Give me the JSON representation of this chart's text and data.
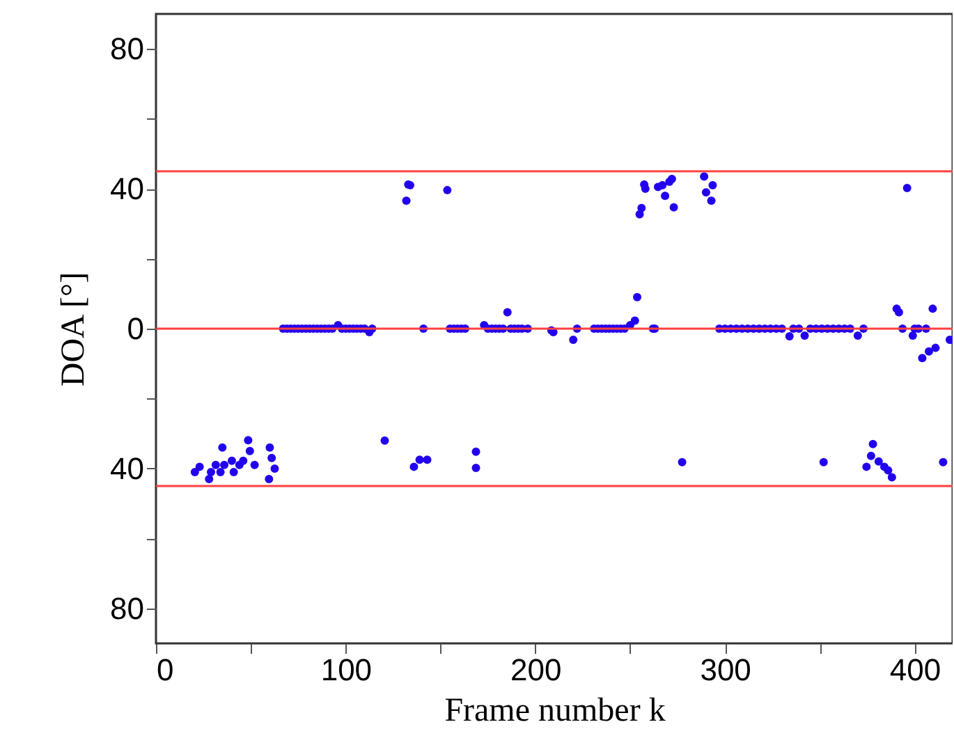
{
  "chart_data": {
    "type": "scatter",
    "xlabel": "Frame number  k",
    "ylabel": "DOA [°]",
    "xlim": [
      0,
      420
    ],
    "ylim": [
      -90,
      90
    ],
    "xticks": [
      0,
      {
        "value": 50,
        "label": null
      },
      100,
      {
        "value": 150,
        "label": null
      },
      200,
      {
        "value": 250,
        "label": null
      },
      300,
      {
        "value": 350,
        "label": null
      },
      400
    ],
    "yticks": [
      {
        "value": -80,
        "label": "80"
      },
      {
        "value": -60,
        "label": null
      },
      {
        "value": -40,
        "label": "40"
      },
      {
        "value": -20,
        "label": null
      },
      0,
      {
        "value": 20,
        "label": null
      },
      40,
      {
        "value": 60,
        "label": null
      },
      80
    ],
    "grid": false,
    "marker": "circle",
    "ref_lines": [
      {
        "axis": "y",
        "value": 45,
        "color": "#ff4040"
      },
      {
        "axis": "y",
        "value": 0,
        "color": "#ff4040"
      },
      {
        "axis": "y",
        "value": -45,
        "color": "#ff4040"
      }
    ],
    "series": [
      {
        "color": "#2200ee",
        "x": [
          20.5,
          23,
          28,
          29,
          31.5,
          34,
          35,
          36,
          40,
          41,
          44,
          46,
          48.6,
          49.5,
          52,
          59.6,
          60,
          61,
          62.6,
          67,
          69,
          71,
          73,
          75,
          77,
          79,
          81,
          83,
          85,
          87,
          89,
          91,
          93,
          96,
          98,
          100,
          102,
          104,
          106,
          108,
          110,
          112.5,
          114,
          120.6,
          132,
          133,
          134,
          136,
          139,
          143,
          141,
          153.6,
          155,
          157,
          159,
          161,
          163,
          168.7,
          168.7,
          173,
          175,
          177,
          179,
          181,
          183,
          185.3,
          187,
          189,
          191,
          193,
          196,
          208.5,
          209.5,
          220,
          222,
          231,
          233,
          235,
          237,
          239,
          241,
          243,
          245,
          247,
          250,
          252.5,
          253.7,
          255,
          256,
          257.4,
          258,
          262,
          263,
          264.7,
          267,
          268.4,
          270.7,
          272,
          273,
          277.4,
          289,
          290,
          292.8,
          293.5,
          297,
          300,
          303,
          306,
          309,
          312,
          315,
          318,
          321,
          324,
          327,
          330,
          334,
          336,
          339,
          342,
          345,
          348,
          351,
          354,
          357,
          360,
          363,
          366,
          370,
          373,
          352,
          374.6,
          377,
          378,
          381,
          384,
          386,
          388,
          390.5,
          391.7,
          393.6,
          396,
          399,
          400,
          402,
          404,
          406,
          407.5,
          409.5,
          411,
          415,
          418.5
        ],
        "values": [
          -41,
          -39.5,
          -43,
          -41,
          -39,
          -41,
          -34,
          -39,
          -37.8,
          -41,
          -39,
          -37.8,
          -31.9,
          -35,
          -39,
          -43,
          -34,
          -37,
          -40,
          0,
          0,
          0,
          0,
          0,
          0,
          0,
          0,
          0,
          0,
          0,
          0,
          0,
          0,
          1,
          0,
          0,
          0,
          0,
          0,
          0,
          0,
          -1,
          0,
          -32,
          36.6,
          41.2,
          41,
          -39.5,
          -37.5,
          -37.5,
          0,
          39.6,
          0,
          0,
          0,
          0,
          0,
          -35.2,
          -39.8,
          1,
          0,
          0,
          0,
          0,
          0,
          4.7,
          0,
          0,
          0,
          0,
          0,
          -0.5,
          -1,
          -3.2,
          0,
          0,
          0,
          0,
          0,
          0,
          0,
          0,
          0,
          0,
          1,
          2.3,
          9,
          32.7,
          34.5,
          41.2,
          40,
          0,
          0,
          40.5,
          41,
          38,
          42,
          42.8,
          34.7,
          -38.2,
          43.5,
          39,
          36.6,
          41,
          0,
          0,
          0,
          0,
          0,
          0,
          0,
          0,
          0,
          0,
          0,
          0,
          -2.2,
          0,
          0,
          -2,
          0,
          0,
          0,
          0,
          0,
          0,
          0,
          0,
          -2,
          0,
          -38.2,
          -39.5,
          -36.4,
          -33,
          -38,
          -39.5,
          -40.5,
          -42.5,
          5.7,
          4.7,
          0,
          40.2,
          -2,
          0,
          0,
          -8.4,
          0,
          -6.5,
          5.7,
          -5.5,
          -38.2,
          -3.2
        ]
      }
    ]
  }
}
